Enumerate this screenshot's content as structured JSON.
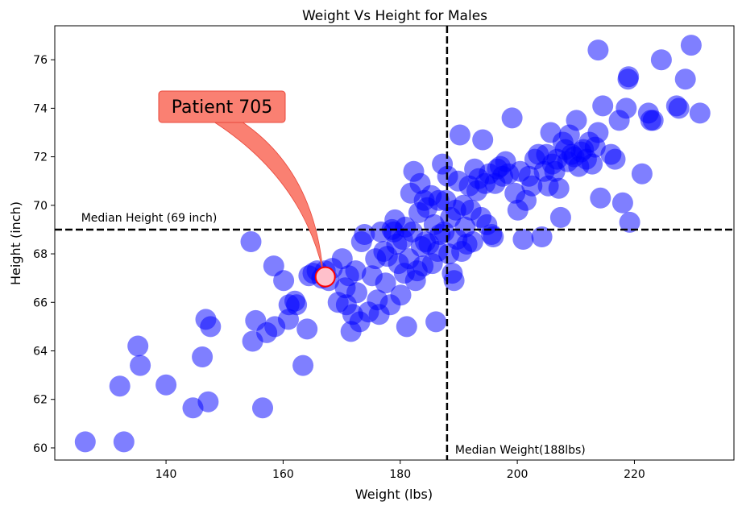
{
  "chart_data": {
    "type": "scatter",
    "title": "Weight Vs Height for Males",
    "xlabel": "Weight (lbs)",
    "ylabel": "Height (inch)",
    "xlim": [
      121,
      237
    ],
    "ylim": [
      59.5,
      77.4
    ],
    "xticks": [
      140,
      160,
      180,
      200,
      220
    ],
    "yticks": [
      60,
      62,
      64,
      66,
      68,
      70,
      72,
      74,
      76
    ],
    "grid": false,
    "marker_color": "#0000ff",
    "marker_alpha": 0.5,
    "points": [
      [
        126.2,
        60.25
      ],
      [
        132.8,
        60.25
      ],
      [
        132.1,
        62.55
      ],
      [
        135.2,
        64.2
      ],
      [
        135.6,
        63.4
      ],
      [
        140,
        62.6
      ],
      [
        144.6,
        61.65
      ],
      [
        146.2,
        63.75
      ],
      [
        146.8,
        65.3
      ],
      [
        147.2,
        61.9
      ],
      [
        147.6,
        65
      ],
      [
        154.5,
        68.5
      ],
      [
        154.8,
        64.4
      ],
      [
        155.3,
        65.25
      ],
      [
        156.5,
        61.65
      ],
      [
        157.2,
        64.75
      ],
      [
        158.4,
        67.5
      ],
      [
        158.6,
        65
      ],
      [
        160.1,
        66.9
      ],
      [
        160.9,
        65.3
      ],
      [
        161,
        65.9
      ],
      [
        162,
        66.05
      ],
      [
        162.3,
        65.9
      ],
      [
        163.4,
        63.4
      ],
      [
        164.1,
        64.9
      ],
      [
        164.4,
        67.1
      ],
      [
        165.1,
        67.2
      ],
      [
        165.8,
        67.3
      ],
      [
        166.6,
        67
      ],
      [
        167.2,
        67.3
      ],
      [
        167.8,
        66.9
      ],
      [
        168.4,
        67.4
      ],
      [
        169.4,
        66
      ],
      [
        170.1,
        67.8
      ],
      [
        170.6,
        66.6
      ],
      [
        170.8,
        65.9
      ],
      [
        171.2,
        67.1
      ],
      [
        171.6,
        64.8
      ],
      [
        171.9,
        65.5
      ],
      [
        172.4,
        67.3
      ],
      [
        172.6,
        66.4
      ],
      [
        173.1,
        65.2
      ],
      [
        173.4,
        68.5
      ],
      [
        173.9,
        68.8
      ],
      [
        174.6,
        65.6
      ],
      [
        175.2,
        67.1
      ],
      [
        175.8,
        67.8
      ],
      [
        176.1,
        66.1
      ],
      [
        176.4,
        65.5
      ],
      [
        176.7,
        68.9
      ],
      [
        177.2,
        68.1
      ],
      [
        177.5,
        66.8
      ],
      [
        177.8,
        67.9
      ],
      [
        178.3,
        65.9
      ],
      [
        178.6,
        69
      ],
      [
        178.9,
        68.9
      ],
      [
        179.1,
        69.4
      ],
      [
        179.4,
        68.4
      ],
      [
        179.7,
        67.6
      ],
      [
        180.1,
        66.3
      ],
      [
        180.4,
        68.6
      ],
      [
        180.7,
        67.2
      ],
      [
        180.9,
        69.1
      ],
      [
        181.1,
        65
      ],
      [
        181.5,
        67.8
      ],
      [
        181.8,
        70.5
      ],
      [
        182.1,
        68.9
      ],
      [
        182.3,
        71.4
      ],
      [
        182.6,
        66.9
      ],
      [
        182.9,
        67.3
      ],
      [
        183.2,
        69.7
      ],
      [
        183.4,
        70.9
      ],
      [
        183.6,
        68.3
      ],
      [
        183.9,
        67.5
      ],
      [
        184.1,
        70.2
      ],
      [
        184.3,
        68.5
      ],
      [
        184.6,
        69.9
      ],
      [
        184.9,
        68.4
      ],
      [
        185.3,
        70.4
      ],
      [
        185.5,
        67.6
      ],
      [
        185.8,
        69.2
      ],
      [
        186.1,
        65.2
      ],
      [
        186.4,
        68.1
      ],
      [
        186.6,
        70.2
      ],
      [
        186.8,
        68.8
      ],
      [
        187.2,
        71.7
      ],
      [
        187.5,
        68.9
      ],
      [
        187.8,
        70.2
      ],
      [
        188.1,
        71.2
      ],
      [
        188.3,
        68
      ],
      [
        188.6,
        69.5
      ],
      [
        188.9,
        67.2
      ],
      [
        189.2,
        66.9
      ],
      [
        189.5,
        69.8
      ],
      [
        189.7,
        68.6
      ],
      [
        189.9,
        71
      ],
      [
        190.2,
        72.9
      ],
      [
        190.5,
        68.1
      ],
      [
        190.8,
        70
      ],
      [
        191.1,
        69.1
      ],
      [
        191.4,
        68.4
      ],
      [
        191.8,
        70.8
      ],
      [
        192.1,
        69.8
      ],
      [
        192.4,
        68.5
      ],
      [
        192.7,
        71.5
      ],
      [
        193.1,
        70.6
      ],
      [
        193.4,
        71.1
      ],
      [
        193.8,
        69.5
      ],
      [
        194.1,
        72.7
      ],
      [
        194.5,
        70.9
      ],
      [
        194.8,
        69.2
      ],
      [
        195.2,
        71.3
      ],
      [
        195.6,
        68.8
      ],
      [
        195.9,
        68.7
      ],
      [
        196.2,
        70.9
      ],
      [
        196.6,
        71.5
      ],
      [
        197.1,
        71.6
      ],
      [
        197.5,
        71.2
      ],
      [
        198,
        71.8
      ],
      [
        198.5,
        71.3
      ],
      [
        199.1,
        73.6
      ],
      [
        199.6,
        70.5
      ],
      [
        200.1,
        69.8
      ],
      [
        200.5,
        71.4
      ],
      [
        201,
        68.6
      ],
      [
        201.5,
        70.2
      ],
      [
        202,
        71.2
      ],
      [
        202.5,
        70.8
      ],
      [
        203,
        71.9
      ],
      [
        203.6,
        72.1
      ],
      [
        204.2,
        68.7
      ],
      [
        204.6,
        71.4
      ],
      [
        205,
        72.1
      ],
      [
        205.3,
        70.8
      ],
      [
        205.7,
        73
      ],
      [
        206,
        71.7
      ],
      [
        206.4,
        71.4
      ],
      [
        206.8,
        71.9
      ],
      [
        207.1,
        70.7
      ],
      [
        207.4,
        69.5
      ],
      [
        207.8,
        72.6
      ],
      [
        208.2,
        72.3
      ],
      [
        208.6,
        71.8
      ],
      [
        208.9,
        72.9
      ],
      [
        209.3,
        72.1
      ],
      [
        209.7,
        72
      ],
      [
        210.1,
        73.5
      ],
      [
        210.5,
        71.6
      ],
      [
        210.9,
        72.2
      ],
      [
        211.3,
        72.3
      ],
      [
        211.8,
        71.9
      ],
      [
        212.3,
        72.6
      ],
      [
        212.8,
        71.7
      ],
      [
        213.3,
        72.4
      ],
      [
        213.8,
        73
      ],
      [
        214.2,
        70.3
      ],
      [
        214.6,
        74.1
      ],
      [
        213.8,
        76.4
      ],
      [
        216,
        72.1
      ],
      [
        216.7,
        71.9
      ],
      [
        217.4,
        73.5
      ],
      [
        218,
        70.1
      ],
      [
        218.6,
        74
      ],
      [
        218.9,
        75.2
      ],
      [
        219,
        75.3
      ],
      [
        219.2,
        69.3
      ],
      [
        221.3,
        71.3
      ],
      [
        222.4,
        73.8
      ],
      [
        222.8,
        73.5
      ],
      [
        223.2,
        73.5
      ],
      [
        224.6,
        76
      ],
      [
        227.2,
        74.1
      ],
      [
        227.6,
        74
      ],
      [
        228.7,
        75.2
      ],
      [
        229.7,
        76.6
      ],
      [
        231.2,
        73.8
      ]
    ],
    "median_weight": 188,
    "median_height": 69,
    "median_height_label": "Median Height (69 inch)",
    "median_weight_label": "Median Weight(188lbs)",
    "highlight": {
      "label": "Patient 705",
      "x": 167.2,
      "y": 67.05,
      "point_color": "#ffc0cb",
      "edge_color": "#ff0000",
      "box_color": "#fa8072"
    }
  }
}
